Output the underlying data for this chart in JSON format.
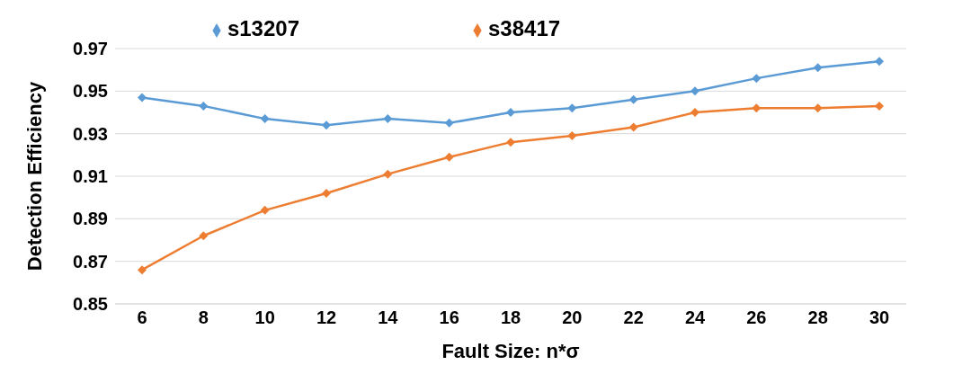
{
  "chart_data": {
    "type": "line",
    "xlabel": "Fault Size: n*σ",
    "ylabel": "Detection Efficiency",
    "categories": [
      "6",
      "8",
      "10",
      "12",
      "14",
      "16",
      "18",
      "20",
      "22",
      "24",
      "26",
      "28",
      "30"
    ],
    "series": [
      {
        "name": "s13207",
        "color": "#5b9bd5",
        "values": [
          0.947,
          0.943,
          0.937,
          0.934,
          0.937,
          0.935,
          0.94,
          0.942,
          0.946,
          0.95,
          0.956,
          0.961,
          0.964
        ]
      },
      {
        "name": "s38417",
        "color": "#ed7d31",
        "values": [
          0.866,
          0.882,
          0.894,
          0.902,
          0.911,
          0.919,
          0.926,
          0.929,
          0.933,
          0.94,
          0.942,
          0.942,
          0.943
        ]
      }
    ],
    "ylim": [
      0.85,
      0.97
    ],
    "yticks": [
      0.85,
      0.87,
      0.89,
      0.91,
      0.93,
      0.95,
      0.97
    ],
    "grid": "y",
    "legend": "top",
    "marker": "diamond",
    "line_style": "solid"
  }
}
